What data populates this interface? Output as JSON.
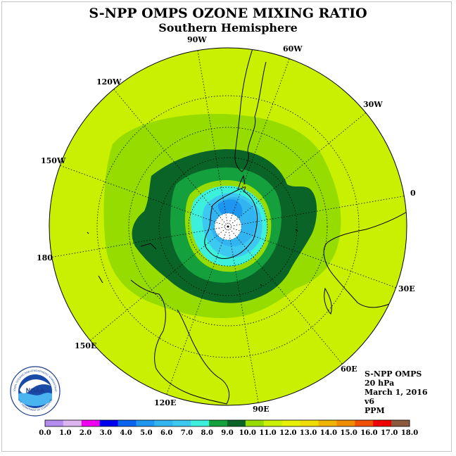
{
  "header": {
    "title": "S-NPP OMPS OZONE MIXING RATIO",
    "subtitle": "Southern Hemisphere"
  },
  "meridian_labels": [
    "90W",
    "60W",
    "30W",
    "0",
    "30E",
    "60E",
    "90E",
    "120E",
    "150E",
    "180",
    "150W",
    "120W"
  ],
  "info": {
    "product": "S-NPP OMPS",
    "level": "20 hPa",
    "date": "March 1, 2016",
    "version": "v6",
    "unit": "PPM"
  },
  "logo": {
    "text": "NOAA",
    "ring_text": "NATIONAL OCEANIC AND ATMOSPHERIC ADMINISTRATION",
    "ring_text_bottom": "U.S. DEPARTMENT OF COMMERCE"
  },
  "colorbar": {
    "ticks": [
      "0.0",
      "1.0",
      "2.0",
      "3.0",
      "4.0",
      "5.0",
      "6.0",
      "7.0",
      "8.0",
      "9.0",
      "10.0",
      "11.0",
      "12.0",
      "13.0",
      "14.0",
      "15.0",
      "16.0",
      "17.0",
      "18.0"
    ],
    "colors": [
      "#b48cf0",
      "#dcb4f0",
      "#f000f0",
      "#0000f0",
      "#0a64f0",
      "#1e96f0",
      "#32b4f0",
      "#3cc8f0",
      "#3cf0dc",
      "#14a03c",
      "#0a6428",
      "#96dc00",
      "#c8f000",
      "#e6f000",
      "#f0dc00",
      "#f0b400",
      "#f08c00",
      "#f05000",
      "#f00000",
      "#8c5a3c"
    ]
  },
  "colors": {
    "background_field": "#c8f000",
    "ocean_land_outline": "#000000"
  }
}
